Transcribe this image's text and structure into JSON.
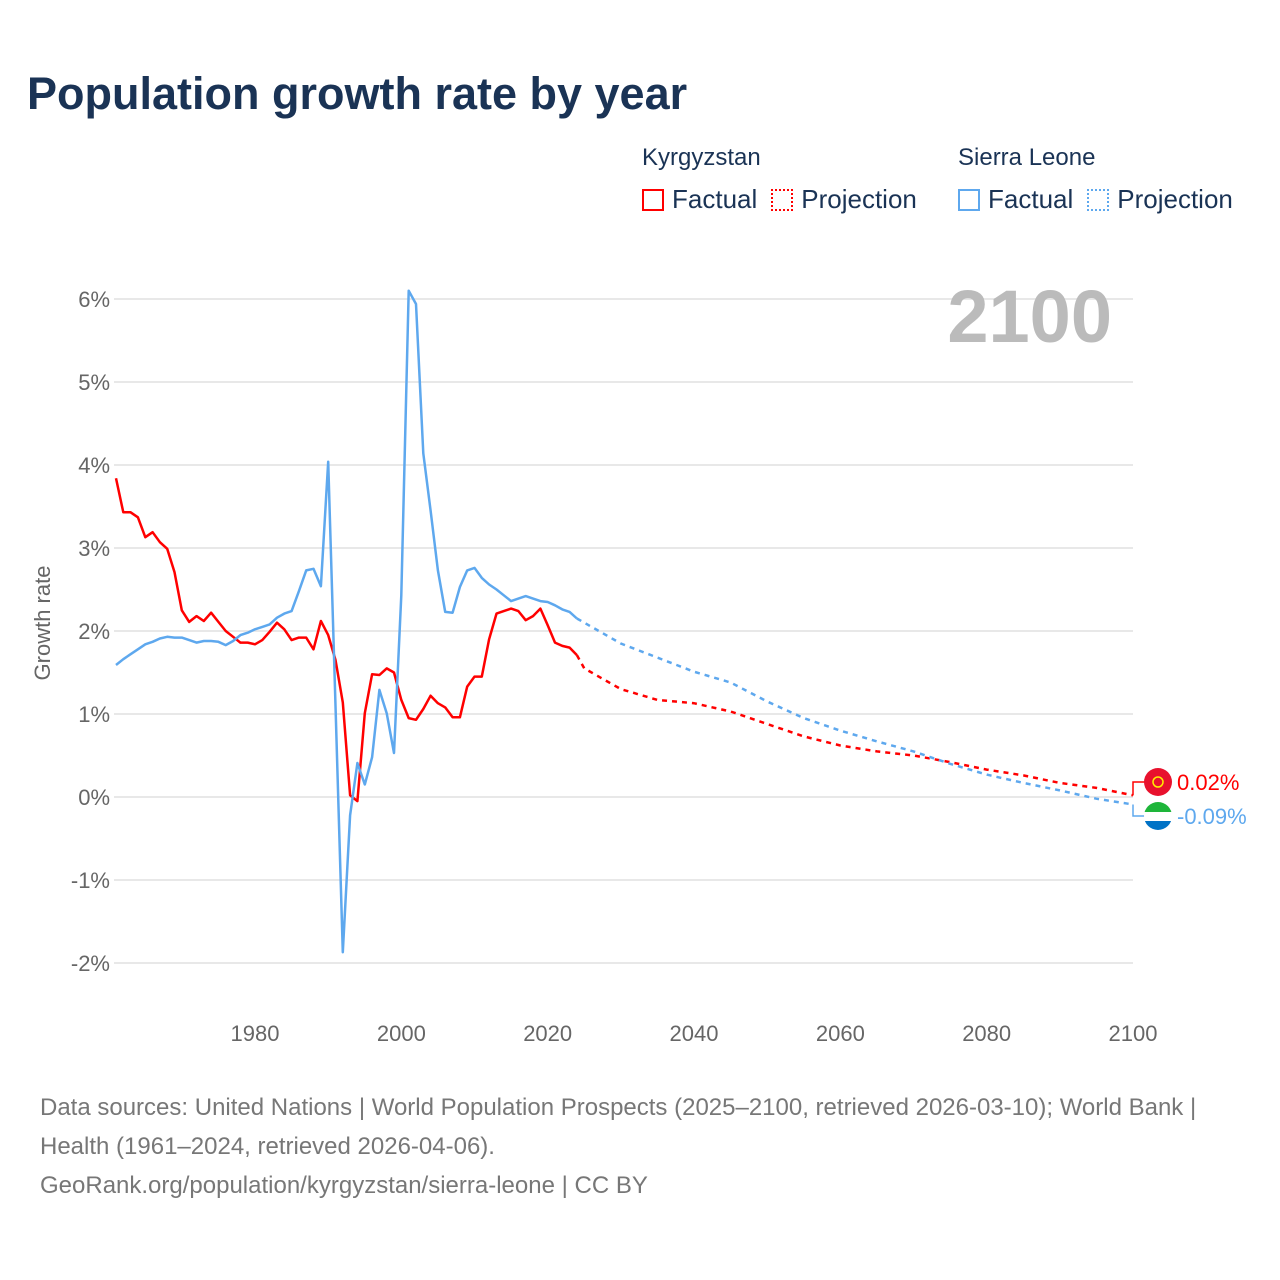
{
  "chart_data": {
    "type": "line",
    "title": "Population growth rate by year",
    "ylabel": "Growth rate",
    "xlabel": "",
    "xlim": [
      1961,
      2100
    ],
    "ylim": [
      -2.4,
      6.4
    ],
    "x_ticks": [
      1980,
      2000,
      2020,
      2040,
      2060,
      2080,
      2100
    ],
    "y_ticks": [
      -2,
      -1,
      0,
      1,
      2,
      3,
      4,
      5,
      6
    ],
    "y_tick_labels": [
      "-2%",
      "-1%",
      "0%",
      "1%",
      "2%",
      "3%",
      "4%",
      "5%",
      "6%"
    ],
    "grid": true,
    "current_year_label": "2100",
    "series": [
      {
        "name": "Kyrgyzstan",
        "color": "#ff0000",
        "end_label": "0.02%",
        "factual": {
          "label": "Factual",
          "x_start": 1961,
          "values": [
            3.84,
            3.43,
            3.43,
            3.37,
            3.13,
            3.19,
            3.07,
            2.99,
            2.71,
            2.25,
            2.11,
            2.18,
            2.12,
            2.22,
            2.11,
            2.0,
            1.93,
            1.86,
            1.86,
            1.84,
            1.89,
            1.99,
            2.1,
            2.02,
            1.89,
            1.92,
            1.92,
            1.78,
            2.12,
            1.95,
            1.65,
            1.14,
            0.02,
            -0.05,
            1.01,
            1.48,
            1.47,
            1.55,
            1.5,
            1.17,
            0.95,
            0.93,
            1.06,
            1.22,
            1.13,
            1.08,
            0.96,
            0.96,
            1.33,
            1.45,
            1.45,
            1.9,
            2.21,
            2.24,
            2.27,
            2.24,
            2.13,
            2.18,
            2.27,
            2.07,
            1.86,
            1.82,
            1.8,
            1.71
          ]
        },
        "projection": {
          "label": "Projection",
          "x": [
            2024,
            2025,
            2030,
            2035,
            2040,
            2045,
            2050,
            2055,
            2060,
            2065,
            2070,
            2075,
            2080,
            2085,
            2090,
            2095,
            2100
          ],
          "values": [
            1.71,
            1.55,
            1.3,
            1.17,
            1.13,
            1.03,
            0.88,
            0.73,
            0.62,
            0.55,
            0.5,
            0.42,
            0.33,
            0.26,
            0.17,
            0.11,
            0.02
          ]
        }
      },
      {
        "name": "Sierra Leone",
        "color": "#5ea8ee",
        "end_label": "-0.09%",
        "factual": {
          "label": "Factual",
          "x_start": 1961,
          "values": [
            1.59,
            1.66,
            1.72,
            1.78,
            1.84,
            1.87,
            1.91,
            1.93,
            1.92,
            1.92,
            1.89,
            1.86,
            1.88,
            1.88,
            1.87,
            1.83,
            1.88,
            1.95,
            1.98,
            2.02,
            2.05,
            2.08,
            2.16,
            2.21,
            2.24,
            2.48,
            2.73,
            2.75,
            2.54,
            4.04,
            1.1,
            -1.87,
            -0.22,
            0.41,
            0.15,
            0.48,
            1.29,
            1.01,
            0.53,
            2.43,
            6.1,
            5.94,
            4.14,
            3.45,
            2.73,
            2.23,
            2.22,
            2.53,
            2.73,
            2.76,
            2.64,
            2.56,
            2.5,
            2.43,
            2.36,
            2.39,
            2.42,
            2.39,
            2.36,
            2.35,
            2.31,
            2.26,
            2.23,
            2.15
          ]
        },
        "projection": {
          "label": "Projection",
          "x": [
            2024,
            2025,
            2030,
            2035,
            2040,
            2045,
            2050,
            2055,
            2060,
            2065,
            2070,
            2075,
            2080,
            2085,
            2090,
            2095,
            2100
          ],
          "values": [
            2.15,
            2.1,
            1.85,
            1.68,
            1.51,
            1.38,
            1.15,
            0.95,
            0.8,
            0.67,
            0.55,
            0.4,
            0.27,
            0.17,
            0.08,
            -0.02,
            -0.09
          ]
        }
      }
    ]
  },
  "footer": {
    "sources": "Data sources: United Nations | World Population Prospects (2025–2100, retrieved 2026-03-10); World Bank | Health (1961–2024, retrieved 2026-04-06).",
    "credit": "GeoRank.org/population/kyrgyzstan/sierra-leone | CC BY"
  }
}
